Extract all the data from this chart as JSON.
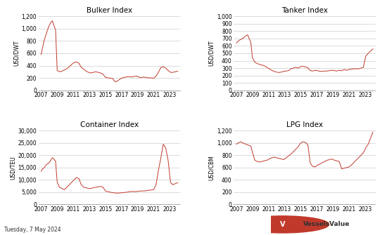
{
  "title_bulker": "Bulker Index",
  "title_tanker": "Tanker Index",
  "title_container": "Container Index",
  "title_lpg": "LPG Index",
  "ylabel_dwt": "USD/DWT",
  "ylabel_teu": "USD/TEU",
  "ylabel_cbm": "USD/CBM",
  "footer_text": "Tuesday, 7 May 2024",
  "brand_text": "VesselsValue",
  "line_color": "#c0392b",
  "background_color": "#ffffff",
  "grid_color": "#cccccc",
  "bulker": {
    "ylim": [
      0,
      1200
    ],
    "yticks": [
      0,
      200,
      400,
      600,
      800,
      1000,
      1200
    ],
    "x": [
      2007.0,
      2007.2,
      2007.4,
      2007.6,
      2007.8,
      2008.0,
      2008.2,
      2008.4,
      2008.6,
      2008.8,
      2009.0,
      2009.3,
      2009.6,
      2009.9,
      2010.2,
      2010.5,
      2010.8,
      2011.1,
      2011.4,
      2011.7,
      2012.0,
      2012.3,
      2012.6,
      2012.9,
      2013.2,
      2013.5,
      2013.8,
      2014.1,
      2014.4,
      2014.7,
      2015.0,
      2015.3,
      2015.6,
      2015.9,
      2016.2,
      2016.5,
      2016.8,
      2017.1,
      2017.4,
      2017.7,
      2018.0,
      2018.3,
      2018.6,
      2018.9,
      2019.2,
      2019.5,
      2019.8,
      2020.1,
      2020.4,
      2020.7,
      2021.0,
      2021.3,
      2021.6,
      2021.9,
      2022.2,
      2022.5,
      2022.8,
      2023.1,
      2023.4,
      2023.7,
      2024.0
    ],
    "y": [
      580,
      700,
      820,
      900,
      980,
      1050,
      1100,
      1130,
      1050,
      980,
      320,
      300,
      310,
      330,
      350,
      380,
      420,
      450,
      460,
      440,
      370,
      340,
      310,
      290,
      280,
      290,
      300,
      290,
      280,
      260,
      210,
      200,
      195,
      190,
      135,
      150,
      180,
      200,
      210,
      220,
      220,
      215,
      225,
      230,
      210,
      205,
      215,
      205,
      200,
      200,
      195,
      230,
      290,
      370,
      380,
      360,
      320,
      290,
      290,
      300,
      310
    ]
  },
  "tanker": {
    "ylim": [
      0,
      1000
    ],
    "yticks": [
      0,
      100,
      200,
      300,
      400,
      500,
      600,
      700,
      800,
      900,
      1000
    ],
    "x": [
      2007.0,
      2007.2,
      2007.4,
      2007.6,
      2007.8,
      2008.0,
      2008.2,
      2008.4,
      2008.6,
      2008.8,
      2009.0,
      2009.3,
      2009.6,
      2009.9,
      2010.2,
      2010.5,
      2010.8,
      2011.1,
      2011.4,
      2011.7,
      2012.0,
      2012.3,
      2012.6,
      2012.9,
      2013.2,
      2013.5,
      2013.8,
      2014.1,
      2014.4,
      2014.7,
      2015.0,
      2015.3,
      2015.6,
      2015.9,
      2016.2,
      2016.5,
      2016.8,
      2017.1,
      2017.4,
      2017.7,
      2018.0,
      2018.3,
      2018.6,
      2018.9,
      2019.2,
      2019.5,
      2019.8,
      2020.1,
      2020.4,
      2020.7,
      2021.0,
      2021.3,
      2021.6,
      2021.9,
      2022.2,
      2022.5,
      2022.8,
      2023.1,
      2023.4,
      2023.7,
      2024.0
    ],
    "y": [
      640,
      660,
      680,
      690,
      700,
      720,
      740,
      750,
      700,
      650,
      440,
      380,
      360,
      350,
      340,
      330,
      310,
      290,
      270,
      255,
      245,
      240,
      245,
      255,
      260,
      265,
      290,
      300,
      310,
      300,
      320,
      325,
      315,
      305,
      265,
      260,
      270,
      265,
      255,
      255,
      260,
      260,
      265,
      270,
      265,
      260,
      270,
      265,
      280,
      270,
      280,
      285,
      290,
      290,
      290,
      300,
      310,
      460,
      500,
      530,
      560
    ]
  },
  "container": {
    "ylim": [
      0,
      30000
    ],
    "yticks": [
      0,
      5000,
      10000,
      15000,
      20000,
      25000,
      30000
    ],
    "x": [
      2007.0,
      2007.2,
      2007.4,
      2007.6,
      2007.8,
      2008.0,
      2008.2,
      2008.4,
      2008.6,
      2008.8,
      2009.0,
      2009.3,
      2009.6,
      2009.9,
      2010.2,
      2010.5,
      2010.8,
      2011.1,
      2011.4,
      2011.7,
      2012.0,
      2012.3,
      2012.6,
      2012.9,
      2013.2,
      2013.5,
      2013.8,
      2014.1,
      2014.4,
      2014.7,
      2015.0,
      2015.3,
      2015.6,
      2015.9,
      2016.2,
      2016.5,
      2016.8,
      2017.1,
      2017.4,
      2017.7,
      2018.0,
      2018.3,
      2018.6,
      2018.9,
      2019.2,
      2019.5,
      2019.8,
      2020.1,
      2020.4,
      2020.7,
      2021.0,
      2021.3,
      2021.6,
      2021.9,
      2022.2,
      2022.5,
      2022.8,
      2023.1,
      2023.4,
      2023.7,
      2024.0
    ],
    "y": [
      13500,
      14500,
      15000,
      16000,
      16500,
      17000,
      18000,
      19000,
      18500,
      17500,
      9000,
      7000,
      6500,
      6000,
      7000,
      8000,
      9000,
      10000,
      11000,
      10500,
      8000,
      7000,
      6800,
      6500,
      6500,
      6800,
      7000,
      7200,
      7300,
      7000,
      5500,
      5200,
      5000,
      4800,
      4700,
      4600,
      4700,
      4800,
      4900,
      5000,
      5200,
      5300,
      5200,
      5300,
      5400,
      5500,
      5500,
      5600,
      5800,
      5900,
      6000,
      8000,
      14000,
      19000,
      24500,
      23000,
      18000,
      9000,
      8000,
      8500,
      8800
    ]
  },
  "lpg": {
    "ylim": [
      0,
      1200
    ],
    "yticks": [
      0,
      200,
      400,
      600,
      800,
      1000,
      1200
    ],
    "x": [
      2007.0,
      2007.2,
      2007.4,
      2007.6,
      2007.8,
      2008.0,
      2008.2,
      2008.4,
      2008.6,
      2008.8,
      2009.0,
      2009.3,
      2009.6,
      2009.9,
      2010.2,
      2010.5,
      2010.8,
      2011.1,
      2011.4,
      2011.7,
      2012.0,
      2012.3,
      2012.6,
      2012.9,
      2013.2,
      2013.5,
      2013.8,
      2014.1,
      2014.4,
      2014.7,
      2015.0,
      2015.3,
      2015.6,
      2015.9,
      2016.2,
      2016.5,
      2016.8,
      2017.1,
      2017.4,
      2017.7,
      2018.0,
      2018.3,
      2018.6,
      2018.9,
      2019.2,
      2019.5,
      2019.8,
      2020.1,
      2020.4,
      2020.7,
      2021.0,
      2021.3,
      2021.6,
      2021.9,
      2022.2,
      2022.5,
      2022.8,
      2023.1,
      2023.4,
      2023.7,
      2024.0
    ],
    "y": [
      980,
      1000,
      1010,
      1020,
      1000,
      990,
      980,
      970,
      960,
      950,
      850,
      720,
      700,
      690,
      700,
      710,
      720,
      740,
      760,
      770,
      760,
      750,
      740,
      730,
      760,
      790,
      820,
      860,
      900,
      940,
      1000,
      1020,
      1010,
      970,
      670,
      620,
      610,
      640,
      660,
      680,
      700,
      720,
      730,
      740,
      720,
      710,
      700,
      580,
      590,
      600,
      610,
      640,
      680,
      720,
      760,
      800,
      840,
      920,
      980,
      1080,
      1180
    ]
  },
  "xticks": [
    2007,
    2009,
    2011,
    2013,
    2015,
    2017,
    2019,
    2021,
    2023
  ],
  "xlim": [
    2006.7,
    2024.3
  ]
}
